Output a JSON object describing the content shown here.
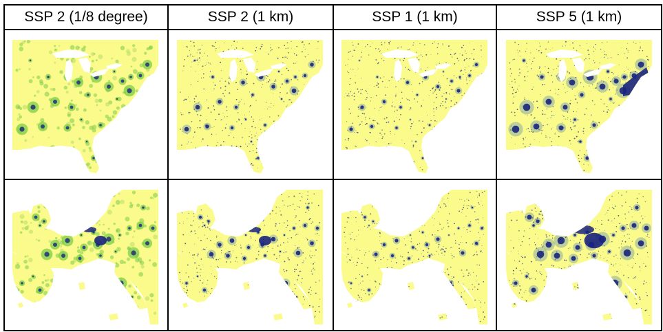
{
  "columns": [
    "SSP 2 (1/8 degree)",
    "SSP 2 (1 km)",
    "SSP 1 (1 km)",
    "SSP 5 (1 km)"
  ],
  "rows": [
    "eastern-united-states",
    "western-europe"
  ],
  "colors": {
    "low": "#fbfb8c",
    "mid": "#7ccc4a",
    "high": "#1a237e",
    "water": "#ffffff"
  }
}
